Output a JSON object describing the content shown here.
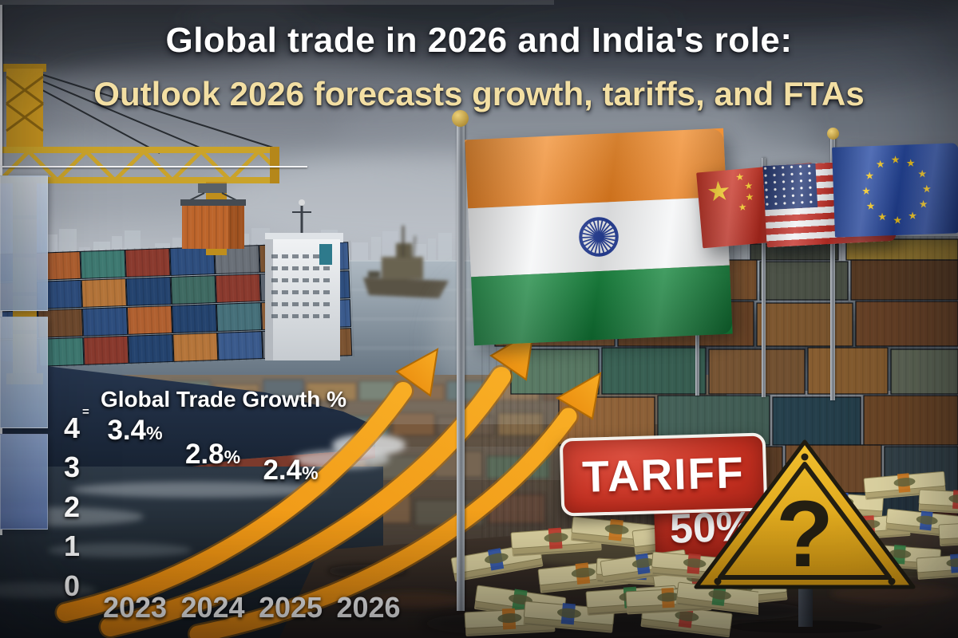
{
  "header": {
    "title": "Global trade in 2026 and India's role:",
    "subtitle": "Outlook 2026 forecasts growth, tariffs, and FTAs"
  },
  "chart_data": {
    "type": "bar",
    "title": "Global Trade Growth %",
    "axis_mark": "=",
    "categories": [
      "2023",
      "2024",
      "2025",
      "2026"
    ],
    "values": [
      3.4,
      2.8,
      2.4,
      null
    ],
    "value_labels": [
      "3.4",
      "2.8",
      "2.4"
    ],
    "unit_suffix": "%",
    "xlabel": "",
    "ylabel": "",
    "y_ticks": [
      0,
      1,
      2,
      3,
      4
    ],
    "ylim": [
      0,
      4
    ],
    "grid": true,
    "legend": "none",
    "bar_gradients": [
      [
        "#c9d4e4",
        "#93a9c7"
      ],
      [
        "#c0cddd",
        "#8aa1c1"
      ],
      [
        "#8da3c9",
        "#52699e"
      ]
    ]
  },
  "signs": {
    "tariff_label": "TARIFF",
    "tariff_rate": "50%",
    "uncertainty_mark": "?"
  },
  "glyphs": {
    "star": "★"
  },
  "icons": {
    "india_flag": "india-flag",
    "china_flag": "china-flag",
    "us_flag": "us-flag",
    "eu_flag": "eu-flag",
    "ashoka_chakra": "ashoka-chakra-icon",
    "warning_triangle": "warning-triangle-icon",
    "question_mark": "question-mark-icon",
    "money_stacks": "money-stack-icon",
    "growth_arrows": "growth-arrows-icon",
    "port_crane": "port-crane-icon",
    "container_ship": "container-ship-icon",
    "navy_ship": "navy-ship-icon",
    "container_yard": "container-yard-icon"
  },
  "colors": {
    "headline": "#ffffff",
    "subheadline": "#f3dfa3",
    "arrow_orange": "#f09a14",
    "tariff_red": "#c22f20",
    "warning_yellow": "#ecb51c",
    "india_saffron": "#f08a2e",
    "india_white": "#f5f6f7",
    "india_green": "#17823b",
    "chakra_navy": "#27409a",
    "chart_text": "#ffffff"
  }
}
